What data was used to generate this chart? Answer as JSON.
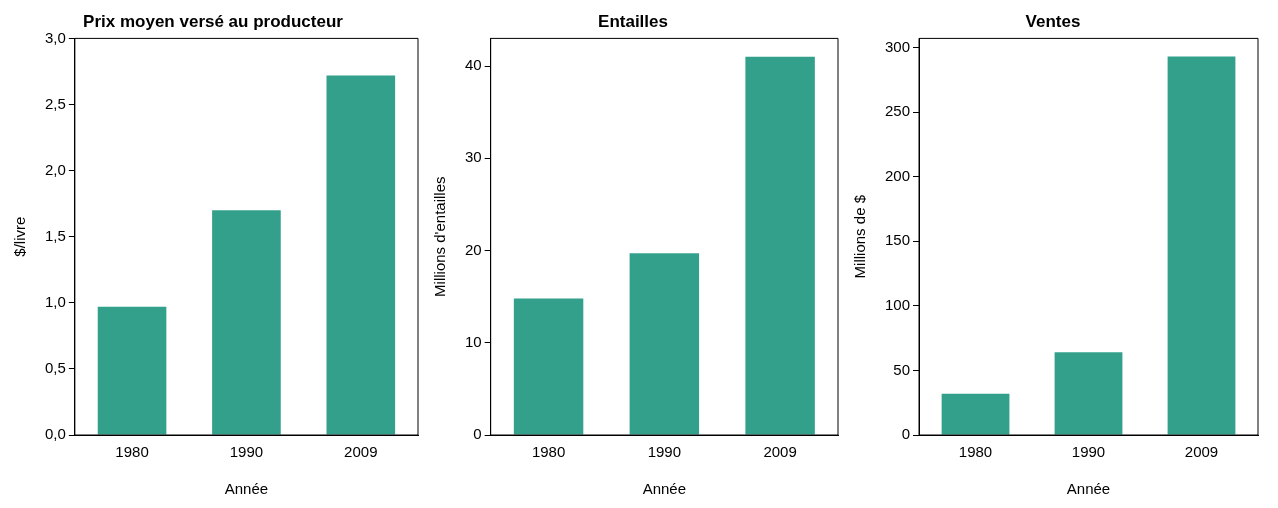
{
  "chart_data": [
    {
      "type": "bar",
      "title": "Prix moyen versé au producteur",
      "xlabel": "Année",
      "ylabel": "$/livre",
      "categories": [
        "1980",
        "1990",
        "2009"
      ],
      "values": [
        0.97,
        1.7,
        2.72
      ],
      "color": "#33a08c",
      "ylim": [
        0,
        3
      ],
      "yticks": [
        {
          "value": 0,
          "label": "0,0"
        },
        {
          "value": 0.5,
          "label": "0,5"
        },
        {
          "value": 1,
          "label": "1,0"
        },
        {
          "value": 1.5,
          "label": "1,5"
        },
        {
          "value": 2,
          "label": "2,0"
        },
        {
          "value": 2.5,
          "label": "2,5"
        },
        {
          "value": 3,
          "label": "3,0"
        }
      ],
      "grid": false,
      "legend": false
    },
    {
      "type": "bar",
      "title": "Entailles",
      "xlabel": "Année",
      "ylabel": "Millions d'entailles",
      "categories": [
        "1980",
        "1990",
        "2009"
      ],
      "values": [
        14.8,
        19.7,
        41
      ],
      "color": "#33a08c",
      "ylim": [
        0,
        43
      ],
      "yticks": [
        0,
        10,
        20,
        30,
        40
      ],
      "grid": false,
      "legend": false
    },
    {
      "type": "bar",
      "title": "Ventes",
      "xlabel": "Année",
      "ylabel": "Millions de $",
      "categories": [
        "1980",
        "1990",
        "2009"
      ],
      "values": [
        32,
        64,
        293
      ],
      "color": "#33a08c",
      "ylim": [
        0,
        307
      ],
      "yticks": [
        0,
        50,
        100,
        150,
        200,
        250,
        300
      ],
      "grid": false,
      "legend": false
    }
  ]
}
